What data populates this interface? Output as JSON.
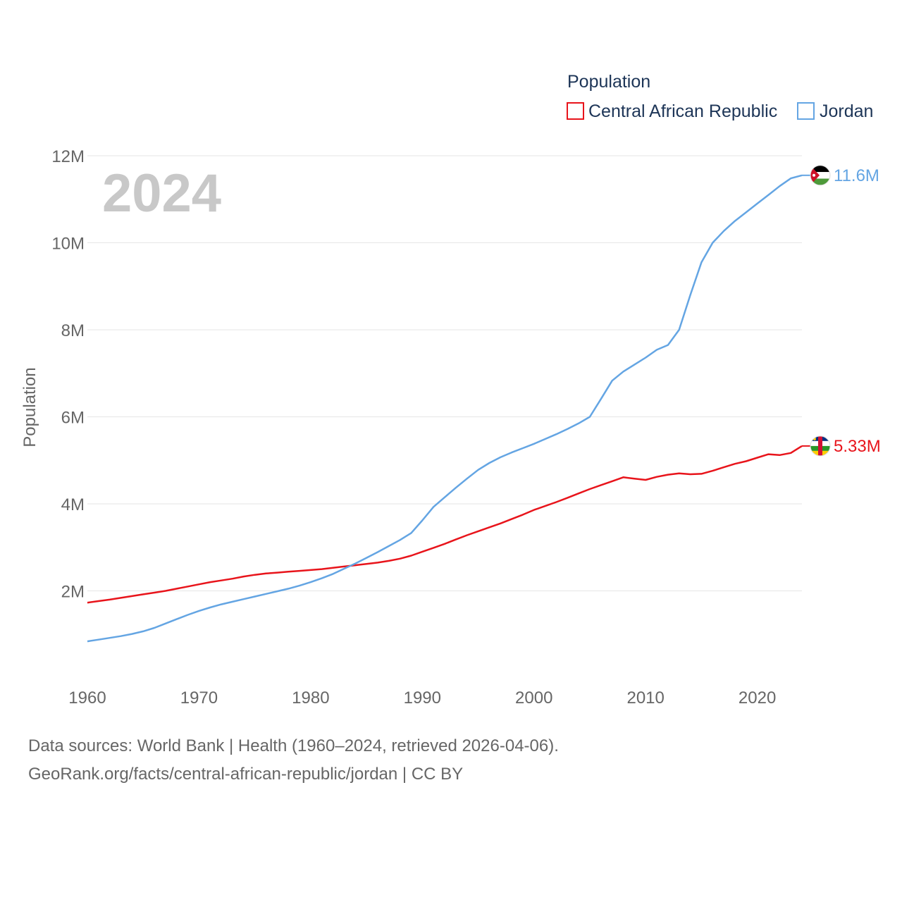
{
  "chart_data": {
    "type": "line",
    "title": "Population",
    "current_year_label": "2024",
    "ylabel": "Population",
    "xlim": [
      1960,
      2024
    ],
    "ylim": [
      0,
      12000000
    ],
    "yticks": [
      2000000,
      4000000,
      6000000,
      8000000,
      10000000,
      12000000
    ],
    "ytick_labels": [
      "2M",
      "4M",
      "6M",
      "8M",
      "10M",
      "12M"
    ],
    "xticks": [
      1960,
      1970,
      1980,
      1990,
      2000,
      2010,
      2020
    ],
    "xtick_labels": [
      "1960",
      "1970",
      "1980",
      "1990",
      "2000",
      "2010",
      "2020"
    ],
    "grid": true,
    "legend_position": "top-right",
    "x": [
      1960,
      1961,
      1962,
      1963,
      1964,
      1965,
      1966,
      1967,
      1968,
      1969,
      1970,
      1971,
      1972,
      1973,
      1974,
      1975,
      1976,
      1977,
      1978,
      1979,
      1980,
      1981,
      1982,
      1983,
      1984,
      1985,
      1986,
      1987,
      1988,
      1989,
      1990,
      1991,
      1992,
      1993,
      1994,
      1995,
      1996,
      1997,
      1998,
      1999,
      2000,
      2001,
      2002,
      2003,
      2004,
      2005,
      2006,
      2007,
      2008,
      2009,
      2010,
      2011,
      2012,
      2013,
      2014,
      2015,
      2016,
      2017,
      2018,
      2019,
      2020,
      2021,
      2022,
      2023,
      2024
    ],
    "series": [
      {
        "name": "Central African Republic",
        "color": "#e8141b",
        "end_label": "5.33M",
        "flag": "central-african-republic-flag",
        "values": [
          1730000,
          1765000,
          1800000,
          1840000,
          1880000,
          1920000,
          1960000,
          2000000,
          2050000,
          2100000,
          2150000,
          2200000,
          2240000,
          2280000,
          2330000,
          2370000,
          2400000,
          2420000,
          2440000,
          2460000,
          2480000,
          2500000,
          2530000,
          2560000,
          2590000,
          2620000,
          2650000,
          2690000,
          2740000,
          2810000,
          2900000,
          2990000,
          3080000,
          3180000,
          3280000,
          3370000,
          3460000,
          3550000,
          3650000,
          3750000,
          3860000,
          3950000,
          4040000,
          4140000,
          4240000,
          4340000,
          4430000,
          4520000,
          4610000,
          4580000,
          4550000,
          4620000,
          4670000,
          4700000,
          4680000,
          4690000,
          4760000,
          4840000,
          4920000,
          4980000,
          5060000,
          5140000,
          5120000,
          5170000,
          5330000
        ]
      },
      {
        "name": "Jordan",
        "color": "#64a5e3",
        "end_label": "11.6M",
        "flag": "jordan-flag",
        "values": [
          840000,
          880000,
          920000,
          960000,
          1010000,
          1070000,
          1150000,
          1250000,
          1350000,
          1450000,
          1540000,
          1620000,
          1690000,
          1750000,
          1810000,
          1870000,
          1930000,
          1990000,
          2050000,
          2120000,
          2200000,
          2290000,
          2390000,
          2510000,
          2630000,
          2760000,
          2890000,
          3030000,
          3170000,
          3330000,
          3620000,
          3930000,
          4150000,
          4370000,
          4580000,
          4780000,
          4940000,
          5070000,
          5180000,
          5280000,
          5380000,
          5490000,
          5600000,
          5720000,
          5850000,
          6000000,
          6410000,
          6830000,
          7040000,
          7200000,
          7360000,
          7540000,
          7650000,
          8000000,
          8800000,
          9550000,
          10000000,
          10270000,
          10500000,
          10700000,
          10900000,
          11100000,
          11300000,
          11480000,
          11550000
        ]
      }
    ]
  },
  "source": {
    "line1": "Data sources: World Bank | Health (1960–2024, retrieved 2026-04-06).",
    "line2": "GeoRank.org/facts/central-african-republic/jordan | CC BY"
  }
}
